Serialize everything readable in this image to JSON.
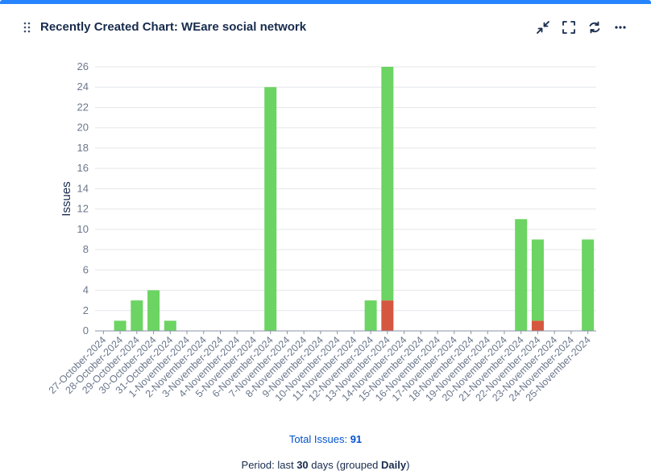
{
  "header": {
    "title": "Recently Created Chart: WEare social network",
    "icons": [
      "drag-handle-icon",
      "minimize-icon",
      "fullscreen-icon",
      "refresh-icon",
      "more-icon"
    ]
  },
  "colors": {
    "accent": "#2684ff",
    "created": "#6bd462",
    "resolved": "#d6573f"
  },
  "chart_data": {
    "type": "bar",
    "stacked": true,
    "ylabel": "Issues",
    "xlabel": "",
    "ylim": [
      0,
      26
    ],
    "yticks": [
      0,
      2,
      4,
      6,
      8,
      10,
      12,
      14,
      16,
      18,
      20,
      22,
      24,
      26
    ],
    "grid": true,
    "categories": [
      "27-October-2024",
      "28-October-2024",
      "29-October-2024",
      "30-October-2024",
      "31-October-2024",
      "1-November-2024",
      "2-November-2024",
      "3-November-2024",
      "4-November-2024",
      "5-November-2024",
      "6-November-2024",
      "7-November-2024",
      "8-November-2024",
      "9-November-2024",
      "10-November-2024",
      "11-November-2024",
      "12-November-2024",
      "13-November-2024",
      "14-November-2024",
      "15-November-2024",
      "16-November-2024",
      "17-November-2024",
      "18-November-2024",
      "19-November-2024",
      "20-November-2024",
      "21-November-2024",
      "22-November-2024",
      "23-November-2024",
      "24-November-2024",
      "25-November-2024"
    ],
    "series": [
      {
        "color": "#d6573f",
        "values": [
          0,
          0,
          0,
          0,
          0,
          0,
          0,
          0,
          0,
          0,
          0,
          0,
          0,
          0,
          0,
          0,
          0,
          3,
          0,
          0,
          0,
          0,
          0,
          0,
          0,
          0,
          1,
          0,
          0,
          0
        ]
      },
      {
        "color": "#6bd462",
        "values": [
          0,
          1,
          3,
          4,
          1,
          0,
          0,
          0,
          0,
          0,
          24,
          0,
          0,
          0,
          0,
          0,
          3,
          23,
          0,
          0,
          0,
          0,
          0,
          0,
          0,
          11,
          8,
          0,
          0,
          9
        ]
      }
    ]
  },
  "footer": {
    "total_label": "Total Issues:",
    "total_value": "91",
    "period_prefix": "Period: last",
    "period_days": "30",
    "period_mid": "days (grouped",
    "period_group": "Daily",
    "period_suffix": ")"
  }
}
